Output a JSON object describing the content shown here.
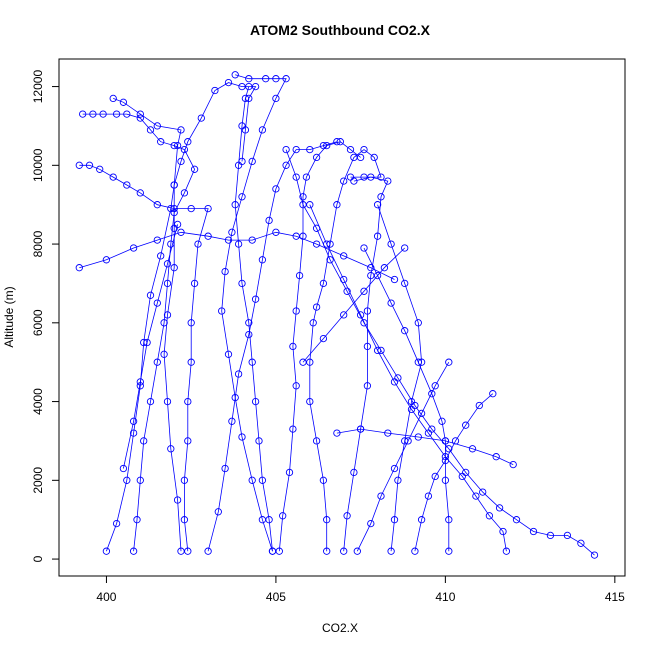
{
  "chart_data": {
    "type": "line",
    "title": "ATOM2 Southbound CO2.X",
    "xlabel": "CO2.X",
    "ylabel": "Altitude (m)",
    "xlim": [
      398.6,
      415.3
    ],
    "ylim": [
      -430,
      12700
    ],
    "xticks": [
      400,
      405,
      410,
      415
    ],
    "yticks": [
      0,
      2000,
      4000,
      6000,
      8000,
      10000,
      12000
    ],
    "grid": false,
    "legend": "none",
    "colors": {
      "series": "#0000ff",
      "axes": "#000000"
    },
    "marker": "open-circle",
    "series": [
      {
        "values": [
          [
            400.0,
            200
          ],
          [
            400.3,
            900
          ],
          [
            400.6,
            2000
          ],
          [
            400.8,
            3200
          ],
          [
            401.0,
            4400
          ],
          [
            401.1,
            5500
          ],
          [
            401.3,
            6700
          ],
          [
            401.6,
            7700
          ],
          [
            401.9,
            8900
          ],
          [
            402.0,
            9500
          ],
          [
            402.1,
            10500
          ],
          [
            402.2,
            10900
          ],
          [
            401.5,
            11000
          ],
          [
            401.0,
            11300
          ],
          [
            400.5,
            11600
          ],
          [
            400.2,
            11700
          ]
        ]
      },
      {
        "values": [
          [
            399.3,
            11300
          ],
          [
            399.6,
            11300
          ],
          [
            399.9,
            11300
          ],
          [
            400.3,
            11300
          ],
          [
            400.6,
            11300
          ],
          [
            401.0,
            11200
          ],
          [
            401.3,
            10900
          ],
          [
            401.6,
            10600
          ],
          [
            402.0,
            10500
          ],
          [
            402.3,
            10400
          ],
          [
            402.6,
            9900
          ],
          [
            402.3,
            9300
          ],
          [
            402.0,
            8800
          ],
          [
            401.9,
            8000
          ],
          [
            401.8,
            7000
          ],
          [
            401.7,
            6000
          ],
          [
            401.5,
            5000
          ],
          [
            401.3,
            4000
          ],
          [
            401.1,
            3000
          ],
          [
            401.0,
            2000
          ],
          [
            400.9,
            1000
          ],
          [
            400.8,
            200
          ]
        ]
      },
      {
        "values": [
          [
            402.2,
            200
          ],
          [
            402.1,
            1500
          ],
          [
            401.9,
            2800
          ],
          [
            401.8,
            4000
          ],
          [
            401.7,
            5200
          ],
          [
            401.8,
            6200
          ],
          [
            402.0,
            7400
          ],
          [
            402.0,
            8400
          ],
          [
            402.0,
            9500
          ],
          [
            402.2,
            10100
          ],
          [
            402.4,
            10600
          ],
          [
            402.8,
            11200
          ],
          [
            403.2,
            11900
          ],
          [
            403.6,
            12100
          ],
          [
            404.0,
            12000
          ],
          [
            404.4,
            12000
          ],
          [
            404.2,
            11700
          ],
          [
            404.1,
            10900
          ],
          [
            404.0,
            10100
          ]
        ]
      },
      {
        "values": [
          [
            399.2,
            10000
          ],
          [
            399.5,
            10000
          ],
          [
            399.8,
            9900
          ],
          [
            400.2,
            9700
          ],
          [
            400.6,
            9500
          ],
          [
            401.0,
            9300
          ],
          [
            401.5,
            9000
          ],
          [
            402.0,
            8900
          ],
          [
            402.5,
            8900
          ],
          [
            403.0,
            8900
          ],
          [
            402.7,
            8000
          ],
          [
            402.6,
            7000
          ],
          [
            402.5,
            6000
          ],
          [
            402.5,
            5000
          ],
          [
            402.4,
            4000
          ],
          [
            402.4,
            3000
          ],
          [
            402.3,
            2000
          ],
          [
            402.3,
            1000
          ],
          [
            402.4,
            200
          ]
        ]
      },
      {
        "values": [
          [
            399.2,
            7400
          ],
          [
            400.0,
            7600
          ],
          [
            400.8,
            7900
          ],
          [
            401.5,
            8100
          ],
          [
            402.2,
            8300
          ],
          [
            403.0,
            8200
          ],
          [
            403.6,
            8100
          ],
          [
            404.3,
            8100
          ],
          [
            405.0,
            8300
          ],
          [
            405.6,
            8200
          ],
          [
            406.2,
            8000
          ],
          [
            407.0,
            7700
          ],
          [
            407.8,
            7400
          ],
          [
            408.5,
            7100
          ]
        ]
      },
      {
        "values": [
          [
            404.9,
            200
          ],
          [
            404.8,
            1000
          ],
          [
            404.6,
            2000
          ],
          [
            404.5,
            3000
          ],
          [
            404.4,
            4000
          ],
          [
            404.3,
            5000
          ],
          [
            404.2,
            6000
          ],
          [
            404.0,
            7000
          ],
          [
            403.9,
            8000
          ],
          [
            403.8,
            9000
          ],
          [
            403.9,
            10000
          ],
          [
            404.0,
            11000
          ],
          [
            404.1,
            11700
          ],
          [
            404.2,
            12000
          ]
        ]
      },
      {
        "values": [
          [
            403.8,
            12300
          ],
          [
            404.2,
            12200
          ],
          [
            404.7,
            12200
          ],
          [
            405.0,
            12200
          ],
          [
            405.3,
            12200
          ],
          [
            405.0,
            11700
          ],
          [
            404.6,
            10900
          ],
          [
            404.3,
            10100
          ],
          [
            404.0,
            9200
          ],
          [
            403.7,
            8300
          ],
          [
            403.5,
            7300
          ],
          [
            403.4,
            6300
          ],
          [
            403.6,
            5200
          ],
          [
            403.8,
            4100
          ],
          [
            404.0,
            3100
          ],
          [
            404.3,
            2000
          ],
          [
            404.6,
            1000
          ],
          [
            404.9,
            200
          ]
        ]
      },
      {
        "values": [
          [
            403.0,
            200
          ],
          [
            403.3,
            1200
          ],
          [
            403.5,
            2300
          ],
          [
            403.7,
            3500
          ],
          [
            403.9,
            4700
          ],
          [
            404.2,
            5700
          ],
          [
            404.4,
            6600
          ],
          [
            404.6,
            7600
          ],
          [
            404.8,
            8600
          ],
          [
            405.0,
            9400
          ],
          [
            405.3,
            10000
          ],
          [
            405.6,
            10400
          ],
          [
            406.0,
            10400
          ],
          [
            406.4,
            10500
          ],
          [
            406.8,
            10600
          ]
        ]
      },
      {
        "values": [
          [
            405.1,
            200
          ],
          [
            405.2,
            1100
          ],
          [
            405.4,
            2200
          ],
          [
            405.5,
            3300
          ],
          [
            405.6,
            4400
          ],
          [
            405.5,
            5400
          ],
          [
            405.6,
            6300
          ],
          [
            405.7,
            7200
          ],
          [
            405.8,
            8200
          ],
          [
            405.8,
            9200
          ],
          [
            405.9,
            9700
          ],
          [
            406.2,
            10200
          ],
          [
            406.5,
            10500
          ],
          [
            406.9,
            10600
          ],
          [
            407.2,
            10400
          ],
          [
            407.5,
            10200
          ]
        ]
      },
      {
        "values": [
          [
            406.5,
            200
          ],
          [
            406.5,
            1000
          ],
          [
            406.4,
            2000
          ],
          [
            406.2,
            3000
          ],
          [
            406.0,
            4000
          ],
          [
            406.0,
            5000
          ],
          [
            406.1,
            6000
          ],
          [
            406.2,
            6400
          ],
          [
            406.4,
            7000
          ],
          [
            406.6,
            8000
          ],
          [
            406.8,
            9000
          ],
          [
            407.0,
            9600
          ],
          [
            407.3,
            10200
          ],
          [
            407.6,
            10400
          ],
          [
            407.9,
            10200
          ],
          [
            408.1,
            9700
          ],
          [
            407.6,
            9700
          ],
          [
            407.2,
            9700
          ]
        ]
      },
      {
        "values": [
          [
            407.0,
            200
          ],
          [
            407.1,
            1100
          ],
          [
            407.3,
            2200
          ],
          [
            407.5,
            3300
          ],
          [
            407.7,
            4400
          ],
          [
            407.7,
            5400
          ],
          [
            407.7,
            6300
          ],
          [
            407.8,
            7200
          ],
          [
            408.0,
            8200
          ],
          [
            408.1,
            9200
          ],
          [
            408.3,
            9600
          ],
          [
            407.8,
            9700
          ],
          [
            407.3,
            9600
          ]
        ]
      },
      {
        "values": [
          [
            405.3,
            10400
          ],
          [
            405.6,
            9700
          ],
          [
            405.8,
            9000
          ],
          [
            406.2,
            8400
          ],
          [
            406.6,
            7600
          ],
          [
            407.1,
            6800
          ],
          [
            407.6,
            6000
          ],
          [
            408.1,
            5300
          ],
          [
            408.6,
            4600
          ],
          [
            409.1,
            3900
          ],
          [
            409.6,
            3300
          ],
          [
            410.1,
            2800
          ],
          [
            410.6,
            2200
          ],
          [
            411.1,
            1700
          ],
          [
            411.6,
            1300
          ],
          [
            412.1,
            1000
          ],
          [
            412.6,
            700
          ],
          [
            413.1,
            600
          ],
          [
            413.6,
            600
          ],
          [
            414.0,
            400
          ],
          [
            414.4,
            100
          ]
        ]
      },
      {
        "values": [
          [
            406.0,
            9000
          ],
          [
            406.5,
            8000
          ],
          [
            407.0,
            7100
          ],
          [
            407.5,
            6200
          ],
          [
            408.0,
            5300
          ],
          [
            408.5,
            4500
          ],
          [
            409.0,
            3800
          ],
          [
            409.5,
            3200
          ],
          [
            410.0,
            2600
          ],
          [
            410.5,
            2100
          ],
          [
            410.9,
            1600
          ],
          [
            411.3,
            1100
          ],
          [
            411.7,
            700
          ],
          [
            411.8,
            200
          ]
        ]
      },
      {
        "values": [
          [
            406.8,
            3200
          ],
          [
            407.5,
            3300
          ],
          [
            408.3,
            3200
          ],
          [
            409.2,
            3100
          ],
          [
            410.0,
            3000
          ],
          [
            410.8,
            2800
          ],
          [
            411.5,
            2600
          ],
          [
            412.0,
            2400
          ]
        ]
      },
      {
        "values": [
          [
            408.4,
            200
          ],
          [
            408.5,
            1000
          ],
          [
            408.6,
            2000
          ],
          [
            408.8,
            3000
          ],
          [
            409.0,
            4000
          ],
          [
            409.3,
            5000
          ],
          [
            409.2,
            6000
          ],
          [
            408.8,
            7000
          ],
          [
            408.4,
            8000
          ],
          [
            408.0,
            9000
          ]
        ]
      },
      {
        "values": [
          [
            410.1,
            200
          ],
          [
            410.1,
            1000
          ],
          [
            410.0,
            2000
          ],
          [
            410.0,
            3000
          ],
          [
            409.9,
            3500
          ],
          [
            409.6,
            4200
          ],
          [
            409.2,
            5000
          ],
          [
            408.8,
            5800
          ],
          [
            408.4,
            6500
          ],
          [
            408.0,
            7200
          ],
          [
            407.6,
            7900
          ]
        ]
      },
      {
        "values": [
          [
            409.1,
            200
          ],
          [
            409.3,
            1000
          ],
          [
            409.5,
            1600
          ],
          [
            409.7,
            2100
          ],
          [
            410.0,
            2500
          ],
          [
            410.3,
            3000
          ],
          [
            410.6,
            3400
          ],
          [
            411.0,
            3900
          ],
          [
            411.4,
            4200
          ]
        ]
      },
      {
        "values": [
          [
            400.5,
            2300
          ],
          [
            400.8,
            3500
          ],
          [
            401.0,
            4500
          ],
          [
            401.2,
            5500
          ],
          [
            401.5,
            6500
          ],
          [
            401.8,
            7500
          ],
          [
            402.1,
            8500
          ]
        ]
      },
      {
        "values": [
          [
            405.8,
            5000
          ],
          [
            406.4,
            5600
          ],
          [
            407.0,
            6200
          ],
          [
            407.6,
            6800
          ],
          [
            408.2,
            7400
          ],
          [
            408.8,
            7900
          ]
        ]
      },
      {
        "values": [
          [
            407.4,
            200
          ],
          [
            407.8,
            900
          ],
          [
            408.1,
            1600
          ],
          [
            408.5,
            2300
          ],
          [
            408.9,
            3000
          ],
          [
            409.3,
            3700
          ],
          [
            409.7,
            4400
          ],
          [
            410.1,
            5000
          ]
        ]
      }
    ]
  }
}
